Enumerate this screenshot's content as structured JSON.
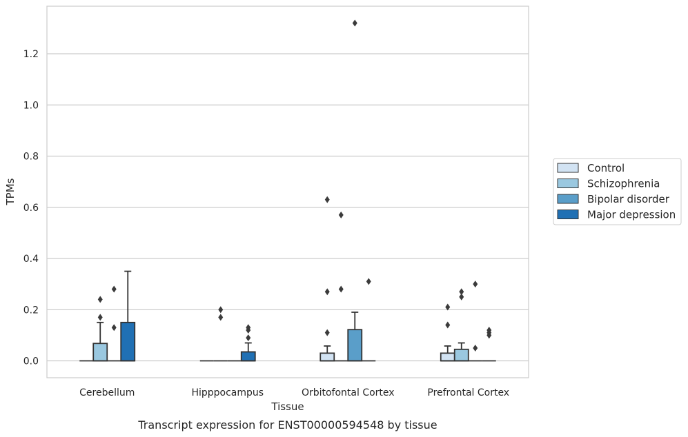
{
  "caption": "Transcript expression for ENST00000594548 by tissue",
  "chart_data": {
    "type": "box",
    "title": "",
    "xlabel": "Tissue",
    "ylabel": "TPMs",
    "ylim": [
      -0.065,
      1.38
    ],
    "yticks": [
      0.0,
      0.2,
      0.4,
      0.6,
      0.8,
      1.0,
      1.2
    ],
    "ytick_labels": [
      "0.0",
      "0.2",
      "0.4",
      "0.6",
      "0.8",
      "1.0",
      "1.2"
    ],
    "grid": "horizontal",
    "legend_position": "right",
    "categories": [
      "Cerebellum",
      "Hipppocampus",
      "Orbitofontal Cortex",
      "Prefrontal Cortex"
    ],
    "series": [
      {
        "name": "Control",
        "color": "#d2e3f3",
        "boxes": [
          {
            "q1": 0,
            "median": 0,
            "q3": 0,
            "whisker_low": 0,
            "whisker_high": 0,
            "outliers": []
          },
          {
            "q1": 0,
            "median": 0,
            "q3": 0,
            "whisker_low": 0,
            "whisker_high": 0,
            "outliers": []
          },
          {
            "q1": 0,
            "median": 0,
            "q3": 0.03,
            "whisker_low": 0,
            "whisker_high": 0.058,
            "outliers": [
              0.11,
              0.27,
              0.63
            ]
          },
          {
            "q1": 0,
            "median": 0,
            "q3": 0.03,
            "whisker_low": 0,
            "whisker_high": 0.058,
            "outliers": [
              0.14,
              0.21
            ]
          }
        ]
      },
      {
        "name": "Schizophrenia",
        "color": "#9ac8e0",
        "boxes": [
          {
            "q1": 0,
            "median": 0,
            "q3": 0.068,
            "whisker_low": 0,
            "whisker_high": 0.15,
            "outliers": [
              0.17,
              0.24
            ]
          },
          {
            "q1": 0,
            "median": 0,
            "q3": 0,
            "whisker_low": 0,
            "whisker_high": 0,
            "outliers": [
              0.17,
              0.2
            ]
          },
          {
            "q1": 0,
            "median": 0,
            "q3": 0,
            "whisker_low": 0,
            "whisker_high": 0,
            "outliers": [
              0.28,
              0.57
            ]
          },
          {
            "q1": 0,
            "median": 0,
            "q3": 0.045,
            "whisker_low": 0,
            "whisker_high": 0.07,
            "outliers": [
              0.25,
              0.27
            ]
          }
        ]
      },
      {
        "name": "Bipolar disorder",
        "color": "#5a9ec9",
        "boxes": [
          {
            "q1": 0,
            "median": 0,
            "q3": 0,
            "whisker_low": 0,
            "whisker_high": 0,
            "outliers": [
              0.13,
              0.28
            ]
          },
          {
            "q1": 0,
            "median": 0,
            "q3": 0,
            "whisker_low": 0,
            "whisker_high": 0,
            "outliers": []
          },
          {
            "q1": 0,
            "median": 0,
            "q3": 0.122,
            "whisker_low": 0,
            "whisker_high": 0.19,
            "outliers": [
              1.32
            ]
          },
          {
            "q1": 0,
            "median": 0,
            "q3": 0,
            "whisker_low": 0,
            "whisker_high": 0,
            "outliers": [
              0.05,
              0.3
            ]
          }
        ]
      },
      {
        "name": "Major depression",
        "color": "#2070b4",
        "boxes": [
          {
            "q1": 0,
            "median": 0,
            "q3": 0.15,
            "whisker_low": 0,
            "whisker_high": 0.35,
            "outliers": []
          },
          {
            "q1": 0,
            "median": 0,
            "q3": 0.035,
            "whisker_low": 0,
            "whisker_high": 0.07,
            "outliers": [
              0.09,
              0.12,
              0.13
            ]
          },
          {
            "q1": 0,
            "median": 0,
            "q3": 0,
            "whisker_low": 0,
            "whisker_high": 0,
            "outliers": [
              0.31
            ]
          },
          {
            "q1": 0,
            "median": 0,
            "q3": 0,
            "whisker_low": 0,
            "whisker_high": 0,
            "outliers": [
              0.1,
              0.11,
              0.12
            ]
          }
        ]
      }
    ]
  }
}
